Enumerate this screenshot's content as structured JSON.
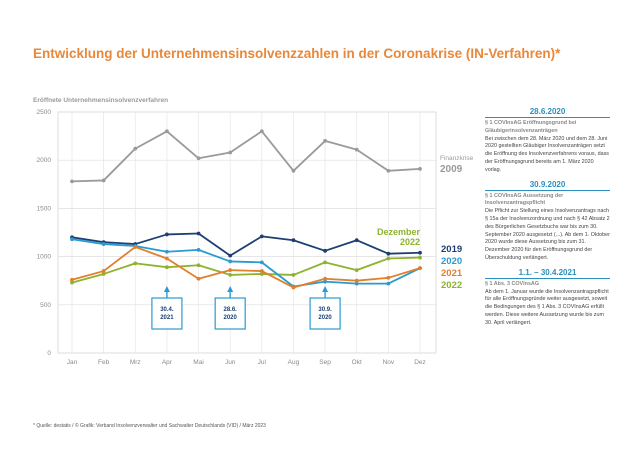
{
  "title": "Entwicklung der Unternehmensinsolvenzzahlen in der Coronakrise (IN-Verfahren)*",
  "chart_data": {
    "type": "line",
    "ylabel": "Eröffnete Unternehmensinsolvenzverfahren",
    "ylim": [
      0,
      2500
    ],
    "yticks": [
      "0",
      "500",
      "1000",
      "1500",
      "2000",
      "2500"
    ],
    "grid": true,
    "categories": [
      "Jan",
      "Feb",
      "Mrz",
      "Apr",
      "Mai",
      "Jun",
      "Jul",
      "Aug",
      "Sep",
      "Okt",
      "Nov",
      "Dez"
    ],
    "series": [
      {
        "name": "Finanzkrise 2009",
        "label_top": "Finanzkrise",
        "label_bottom": "2009",
        "color": "#9a9a9a",
        "values": [
          1780,
          1790,
          2120,
          2300,
          2020,
          2080,
          2300,
          1890,
          2200,
          2110,
          1890,
          1910
        ]
      },
      {
        "name": "Dezember 2022",
        "label_top": "Dezember",
        "label_bottom": "2022",
        "color": "#8db32f",
        "values": [
          730,
          820,
          930,
          890,
          910,
          810,
          820,
          810,
          940,
          860,
          980,
          990
        ]
      },
      {
        "name": "2019",
        "color": "#1d3f73",
        "values": [
          1200,
          1150,
          1130,
          1230,
          1240,
          1010,
          1210,
          1170,
          1060,
          1170,
          1030,
          1040
        ]
      },
      {
        "name": "2020",
        "color": "#2a9bd1",
        "values": [
          1180,
          1130,
          1110,
          1050,
          1070,
          950,
          940,
          690,
          740,
          720,
          720,
          880
        ]
      },
      {
        "name": "2021",
        "color": "#e07f2c",
        "values": [
          760,
          850,
          1100,
          980,
          770,
          860,
          850,
          680,
          770,
          750,
          780,
          880
        ]
      },
      {
        "name": "2022",
        "color": "#8db32f",
        "values": [
          730,
          820,
          930,
          890,
          910,
          810,
          820,
          810,
          940,
          860,
          980,
          990
        ]
      }
    ],
    "annotations": [
      {
        "text": "30.4. 2021",
        "category": "Apr",
        "color": "#2a9bd1"
      },
      {
        "text": "28.6. 2020",
        "category": "Jun",
        "color": "#2a9bd1"
      },
      {
        "text": "30.9. 2020",
        "category": "Sep",
        "color": "#2a9bd1"
      }
    ]
  },
  "sidebar": {
    "sections": [
      {
        "date": "28.6.2020",
        "subtitle": "§ 1 COVInsAG Eröffnungsgrund bei Gläubigerinsolvenzanträgen",
        "body": "Bei zwischen dem 28. März 2020 und dem 28. Juni 2020 gestellten Gläubiger Insolvenzanträgen setzt die Eröffnung des Insolvenzverfahrens voraus, dass der Eröffnungsgrund bereits am 1. März 2020 vorlag."
      },
      {
        "date": "30.9.2020",
        "subtitle": "§ 1 COVInsAG Aussetzung der Insolvenzantragspflicht",
        "body": "Die Pflicht zur Stellung eines Insolvenzantrags nach § 15a der Insolvenzordnung und nach § 42 Absatz 2 des Bürgerlichen Gesetzbuchs war bis zum 30. September 2020 ausgesetzt (...). Ab dem 1. Oktober 2020 wurde diese Aussetzung bis zum 31. Dezember 2020 für den Eröffnungsgrund der Überschuldung verlängert."
      },
      {
        "date": "1.1. – 30.4.2021",
        "subtitle": "§ 1 Abs. 3 COVInsAG",
        "body": "Ab dem 1. Januar wurde die Insolvenzantragspflicht für alle Eröffnungsgründe weiter ausgesetzt, soweit die Bedingungen des § 1 Abs. 3 COVInsAG erfüllt werden. Diese weitere Aussetzung wurde bis zum 30. April verlängert."
      }
    ]
  },
  "footnote": "* Quelle: destatis / © Grafik: Verband Insolvenzverwalter und Sachwalter Deutschlands (VID) / März 2023"
}
